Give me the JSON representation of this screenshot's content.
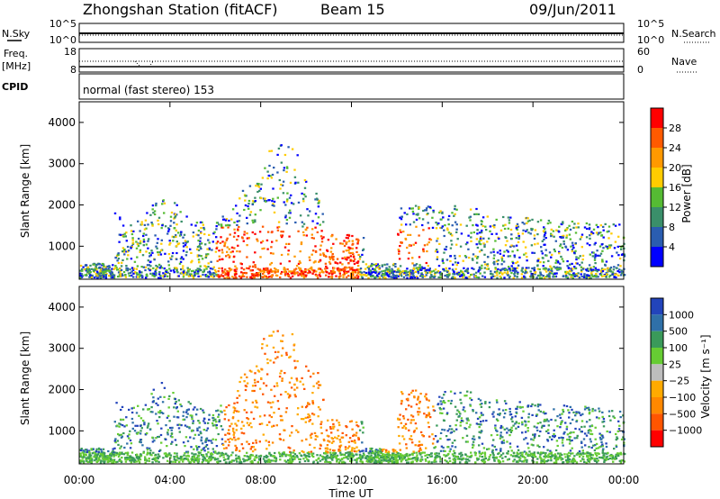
{
  "header": {
    "station": "Zhongshan Station (fitACF)",
    "beam": "Beam 15",
    "date": "09/Jun/2011"
  },
  "strips": {
    "nsky_label": "N.Sky",
    "nsearch_label": "N.Search",
    "sky_ticks": [
      "10^5",
      "10^0"
    ],
    "search_ticks": [
      "10^5",
      "10^0"
    ],
    "freq_label_1": "Freq.",
    "freq_label_2": "[MHz]",
    "freq_ticks": [
      "18",
      "8"
    ],
    "nave_label": "Nave",
    "nave_ticks": [
      "60",
      "0"
    ],
    "cpid_label": "CPID",
    "cpid_value": "normal (fast stereo) 153"
  },
  "chart_data": [
    {
      "type": "heatmap",
      "name": "power",
      "ylabel": "Slant Range [km]",
      "yticks": [
        "4000",
        "3000",
        "2000",
        "1000"
      ],
      "ylim": [
        200,
        4500
      ],
      "xlim": [
        0,
        24
      ],
      "colorbar": {
        "label": "Power [dB]",
        "ticks": [
          "28",
          "24",
          "20",
          "16",
          "12",
          "8",
          "4"
        ],
        "colors": [
          "#ff0000",
          "#ff5a00",
          "#ff9900",
          "#ffcc00",
          "#55bb33",
          "#3a8f6a",
          "#2a5db0",
          "#0000ff"
        ]
      }
    },
    {
      "type": "heatmap",
      "name": "velocity",
      "ylabel": "Slant Range [km]",
      "yticks": [
        "4000",
        "3000",
        "2000",
        "1000"
      ],
      "ylim": [
        200,
        4500
      ],
      "xlim": [
        0,
        24
      ],
      "xlabel": "Time UT",
      "xticks": [
        "00:00",
        "04:00",
        "08:00",
        "12:00",
        "16:00",
        "20:00",
        "00:00"
      ],
      "colorbar": {
        "label": "Velocity [m s⁻¹]",
        "ticks": [
          "1000",
          "500",
          "100",
          "25",
          "−25",
          "−100",
          "−500",
          "−1000"
        ],
        "colors": [
          "#2244bb",
          "#2f70a8",
          "#3a9a5a",
          "#66cc33",
          "#bdbdbd",
          "#ffaa00",
          "#ff8800",
          "#ff5500",
          "#ff0000"
        ]
      }
    }
  ]
}
